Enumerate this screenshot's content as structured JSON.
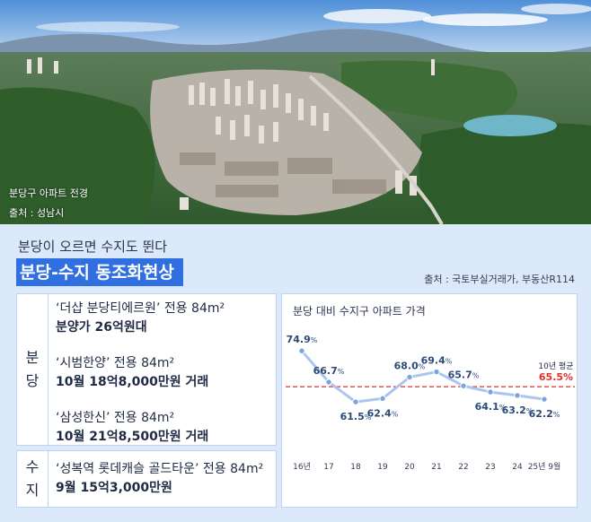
{
  "photo": {
    "caption_line1": "분당구 아파트 전경",
    "caption_line2": "출처 : 성남시"
  },
  "subtitle": "분당이 오르면 수지도 뛴다",
  "headline": "분당-수지 동조화현상",
  "source": "출처 : 국토부실거래가, 부동산R114",
  "table": {
    "bundang_label": [
      "분",
      "당"
    ],
    "bundang_entries": [
      {
        "line1": "‘더샵 분당티에르원’ 전용 84m²",
        "line2": "분양가 26억원대"
      },
      {
        "line1": "‘시범한양’ 전용 84m²",
        "line2": "10월 18억8,000만원 거래"
      },
      {
        "line1": "‘삼성한신’ 전용 84m²",
        "line2": "10월 21억8,500만원 거래"
      }
    ],
    "suji_label": [
      "수",
      "지"
    ],
    "suji_entry": {
      "line1": "‘성복역 롯데캐슬 골드타운’ 전용 84m²",
      "line2": "9월 15억3,000만원"
    }
  },
  "colors": {
    "headline_bg": "#2f6fe0",
    "panel_bg": "#dce9fb",
    "line": "#a9c6ee",
    "point": "#7aa4e0",
    "label": "#2c4a78",
    "average": "#e0302a"
  },
  "chart_data": {
    "type": "line",
    "title": "분당 대비 수지구 아파트 가격",
    "categories": [
      "16년",
      "17",
      "18",
      "19",
      "20",
      "21",
      "22",
      "23",
      "24",
      "25년 9월"
    ],
    "series": [
      {
        "values": [
          74.9,
          66.7,
          61.5,
          62.4,
          68.0,
          69.4,
          65.7,
          64.1,
          63.2,
          62.2
        ]
      }
    ],
    "unit": "%",
    "reference_line": {
      "name": "10년 평균",
      "value": 65.5,
      "style": "dashed",
      "color": "#e0302a"
    },
    "ylim": [
      58,
      78
    ],
    "grid": false
  }
}
